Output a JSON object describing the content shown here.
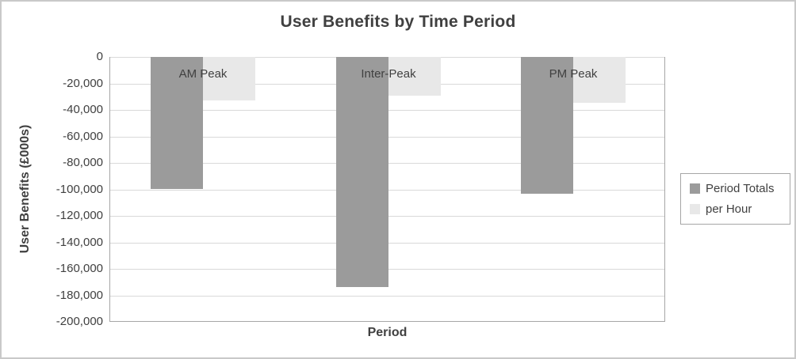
{
  "chart_data": {
    "type": "bar",
    "title": "User Benefits by Time Period",
    "xlabel": "Period",
    "ylabel": "User Benefits (£000s)",
    "categories": [
      "AM Peak",
      "Inter-Peak",
      "PM Peak"
    ],
    "series": [
      {
        "name": "Period Totals",
        "color": "#9b9b9b",
        "values": [
          -99500,
          -173500,
          -103500
        ]
      },
      {
        "name": "per Hour",
        "color": "#e8e8e8",
        "values": [
          -33000,
          -29500,
          -34500
        ]
      }
    ],
    "ylim": [
      -200000,
      0
    ],
    "ytick_step": 20000,
    "ytick_labels": [
      "0",
      "-20,000",
      "-40,000",
      "-60,000",
      "-80,000",
      "-100,000",
      "-120,000",
      "-140,000",
      "-160,000",
      "-180,000",
      "-200,000"
    ],
    "grid": true,
    "legend_position": "right",
    "colors": {
      "text": "#404040",
      "gridline": "#d9d9d9",
      "axis_line": "#a6a6a6",
      "outer_border": "#c9c9c9"
    }
  }
}
